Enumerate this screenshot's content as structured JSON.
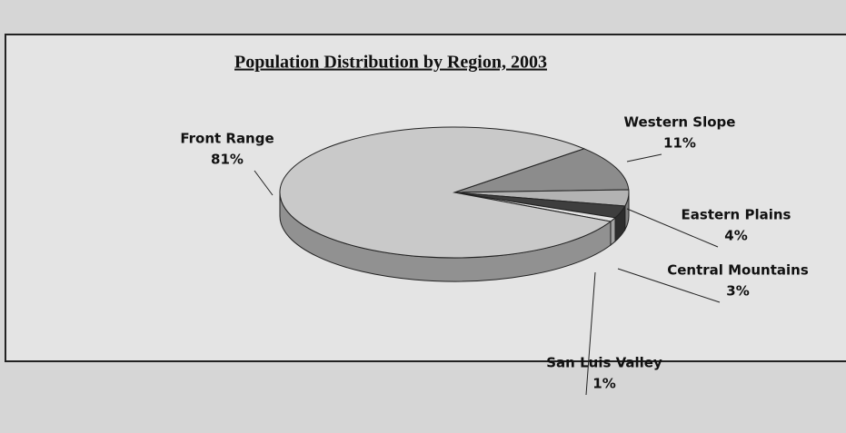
{
  "chart_data": {
    "type": "pie",
    "title": "Population Distribution by Region, 2003",
    "categories": [
      "Front Range",
      "Western Slope",
      "Eastern Plains",
      "Central Mountains",
      "San Luis Valley"
    ],
    "values": [
      81,
      11,
      4,
      3,
      1
    ],
    "value_labels": [
      "81%",
      "11%",
      "4%",
      "3%",
      "1%"
    ],
    "colors": [
      "#c9c9c9",
      "#8c8c8c",
      "#b3b3b3",
      "#3e3e3e",
      "#e2e2e2"
    ]
  }
}
